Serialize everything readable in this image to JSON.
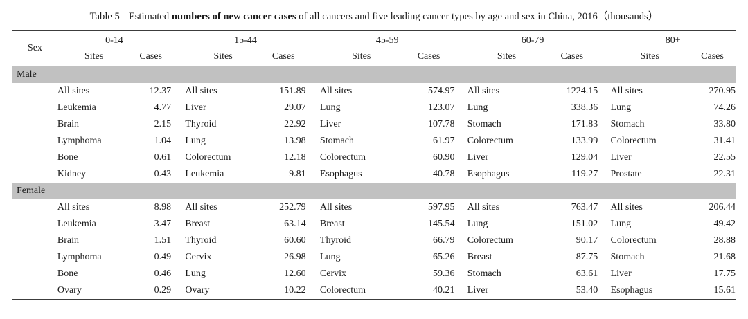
{
  "title": {
    "table_label": "Table 5",
    "lead": "Estimated ",
    "bold_phrase": "numbers of new cancer cases",
    "rest": " of all cancers and five leading cancer types by age and sex in China, 2016（thousands）"
  },
  "header": {
    "sex_label": "Sex",
    "age_groups": [
      "0-14",
      "15-44",
      "45-59",
      "60-79",
      "80+"
    ],
    "sites_label": "Sites",
    "cases_label": "Cases"
  },
  "band_color": "#c1c1c1",
  "sections": [
    {
      "label": "Male",
      "rows": [
        [
          {
            "site": "All sites",
            "cases": "12.37"
          },
          {
            "site": "All sites",
            "cases": "151.89"
          },
          {
            "site": "All sites",
            "cases": "574.97"
          },
          {
            "site": "All sites",
            "cases": "1224.15"
          },
          {
            "site": "All sites",
            "cases": "270.95"
          }
        ],
        [
          {
            "site": "Leukemia",
            "cases": "4.77"
          },
          {
            "site": "Liver",
            "cases": "29.07"
          },
          {
            "site": "Lung",
            "cases": "123.07"
          },
          {
            "site": "Lung",
            "cases": "338.36"
          },
          {
            "site": "Lung",
            "cases": "74.26"
          }
        ],
        [
          {
            "site": "Brain",
            "cases": "2.15"
          },
          {
            "site": "Thyroid",
            "cases": "22.92"
          },
          {
            "site": "Liver",
            "cases": "107.78"
          },
          {
            "site": "Stomach",
            "cases": "171.83"
          },
          {
            "site": "Stomach",
            "cases": "33.80"
          }
        ],
        [
          {
            "site": "Lymphoma",
            "cases": "1.04"
          },
          {
            "site": "Lung",
            "cases": "13.98"
          },
          {
            "site": "Stomach",
            "cases": "61.97"
          },
          {
            "site": "Colorectum",
            "cases": "133.99"
          },
          {
            "site": "Colorectum",
            "cases": "31.41"
          }
        ],
        [
          {
            "site": "Bone",
            "cases": "0.61"
          },
          {
            "site": "Colorectum",
            "cases": "12.18"
          },
          {
            "site": "Colorectum",
            "cases": "60.90"
          },
          {
            "site": "Liver",
            "cases": "129.04"
          },
          {
            "site": "Liver",
            "cases": "22.55"
          }
        ],
        [
          {
            "site": "Kidney",
            "cases": "0.43"
          },
          {
            "site": "Leukemia",
            "cases": "9.81"
          },
          {
            "site": "Esophagus",
            "cases": "40.78"
          },
          {
            "site": "Esophagus",
            "cases": "119.27"
          },
          {
            "site": "Prostate",
            "cases": "22.31"
          }
        ]
      ]
    },
    {
      "label": "Female",
      "rows": [
        [
          {
            "site": "All sites",
            "cases": "8.98"
          },
          {
            "site": "All sites",
            "cases": "252.79"
          },
          {
            "site": "All sites",
            "cases": "597.95"
          },
          {
            "site": "All sites",
            "cases": "763.47"
          },
          {
            "site": "All sites",
            "cases": "206.44"
          }
        ],
        [
          {
            "site": "Leukemia",
            "cases": "3.47"
          },
          {
            "site": "Breast",
            "cases": "63.14"
          },
          {
            "site": "Breast",
            "cases": "145.54"
          },
          {
            "site": "Lung",
            "cases": "151.02"
          },
          {
            "site": "Lung",
            "cases": "49.42"
          }
        ],
        [
          {
            "site": "Brain",
            "cases": "1.51"
          },
          {
            "site": "Thyroid",
            "cases": "60.60"
          },
          {
            "site": "Thyroid",
            "cases": "66.79"
          },
          {
            "site": "Colorectum",
            "cases": "90.17"
          },
          {
            "site": "Colorectum",
            "cases": "28.88"
          }
        ],
        [
          {
            "site": "Lymphoma",
            "cases": "0.49"
          },
          {
            "site": "Cervix",
            "cases": "26.98"
          },
          {
            "site": "Lung",
            "cases": "65.26"
          },
          {
            "site": "Breast",
            "cases": "87.75"
          },
          {
            "site": "Stomach",
            "cases": "21.68"
          }
        ],
        [
          {
            "site": "Bone",
            "cases": "0.46"
          },
          {
            "site": "Lung",
            "cases": "12.60"
          },
          {
            "site": "Cervix",
            "cases": "59.36"
          },
          {
            "site": "Stomach",
            "cases": "63.61"
          },
          {
            "site": "Liver",
            "cases": "17.75"
          }
        ],
        [
          {
            "site": "Ovary",
            "cases": "0.29"
          },
          {
            "site": "Ovary",
            "cases": "10.22"
          },
          {
            "site": "Colorectum",
            "cases": "40.21"
          },
          {
            "site": "Liver",
            "cases": "53.40"
          },
          {
            "site": "Esophagus",
            "cases": "15.61"
          }
        ]
      ]
    }
  ]
}
